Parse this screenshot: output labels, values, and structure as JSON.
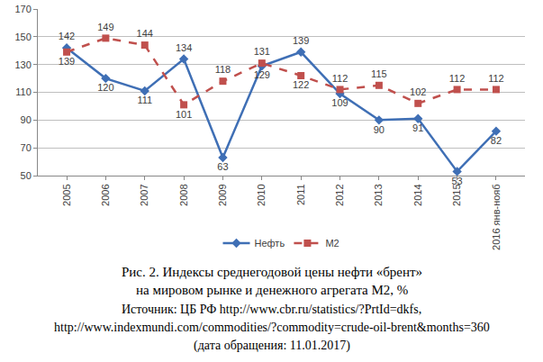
{
  "chart_data": {
    "type": "line",
    "categories": [
      "2005",
      "2006",
      "2007",
      "2008",
      "2009",
      "2010",
      "2011",
      "2012",
      "2013",
      "2014",
      "2015",
      "2016 янв-нояб"
    ],
    "series": [
      {
        "name": "Нефть",
        "color": "#3F6FB5",
        "marker": "diamond",
        "line_style": "solid",
        "values": [
          142,
          120,
          111,
          134,
          63,
          129,
          139,
          109,
          90,
          91,
          53,
          82
        ]
      },
      {
        "name": "M2",
        "color": "#C0504D",
        "marker": "square",
        "line_style": "dash",
        "values": [
          139,
          149,
          144,
          101,
          118,
          131,
          122,
          112,
          115,
          102,
          112,
          112
        ]
      }
    ],
    "ylim": [
      50,
      170
    ],
    "yticks": [
      50,
      70,
      90,
      110,
      130,
      150,
      170
    ],
    "grid": true,
    "legend": "bottom",
    "data_labels": true,
    "annotations": [
      "Рис. 2. Индексы среднегодовой цены нефти «брент»",
      "на мировом рынке и денежного агрегата М2, %",
      "Источник: ЦБ РФ http://www.cbr.ru/statistics/?PrtId=dkfs,",
      "http://www.indexmundi.com/commodities/?commodity=crude-oil-brent&months=360",
      "(дата обращения: 11.01.2017)"
    ]
  }
}
